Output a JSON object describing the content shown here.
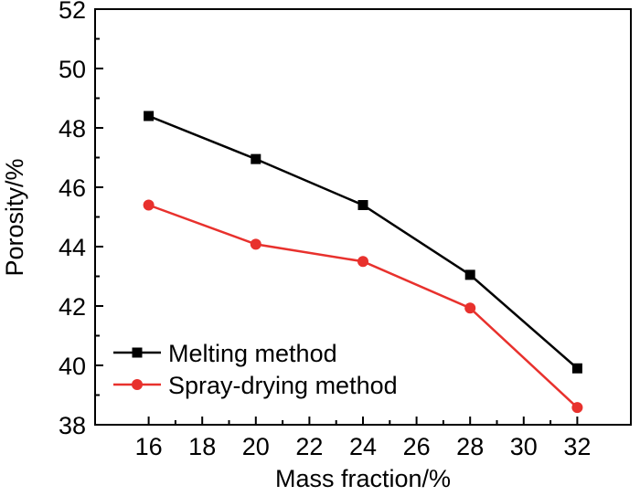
{
  "chart_data": {
    "type": "line",
    "xlabel": "Mass fraction/%",
    "ylabel": "Porosity/%",
    "xlim": [
      14,
      34
    ],
    "ylim": [
      38,
      52
    ],
    "xticks": [
      16,
      18,
      20,
      22,
      24,
      26,
      28,
      30,
      32
    ],
    "yticks": [
      38,
      40,
      42,
      44,
      46,
      48,
      50,
      52
    ],
    "x": [
      16,
      20,
      24,
      28,
      32
    ],
    "legend_position": "bottom-left",
    "grid": false,
    "series": [
      {
        "name": "Melting method",
        "color": "#000000",
        "marker": "square",
        "values": [
          48.4,
          46.95,
          45.4,
          43.05,
          39.9
        ]
      },
      {
        "name": "Spray-drying method",
        "color": "#e8312d",
        "marker": "circle",
        "values": [
          45.4,
          44.08,
          43.5,
          41.93,
          38.58
        ]
      }
    ]
  }
}
